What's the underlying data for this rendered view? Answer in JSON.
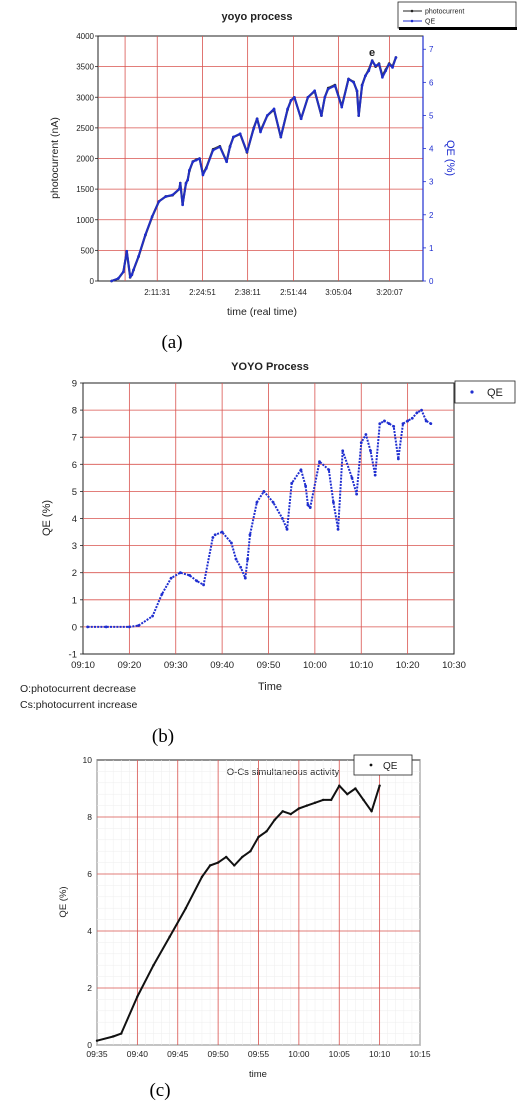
{
  "figure": {
    "captions": [
      "(a)",
      "(b)",
      "(c)"
    ]
  },
  "chart_data": [
    {
      "type": "line",
      "title": "yoyo process",
      "xlabel": "time (real time)",
      "ylabel": "photocurrent (nA)",
      "y2label": "QE (%)",
      "x_tick_labels": [
        "2:11:31",
        "2:24:51",
        "2:38:11",
        "2:51:44",
        "3:05:04",
        "3:20:07"
      ],
      "x_tick_positions_min": [
        131.5,
        144.85,
        158.2,
        171.73,
        185.07,
        200.12
      ],
      "xlim_min": [
        114,
        210
      ],
      "ylim": [
        0,
        4000
      ],
      "y_ticks": [
        0,
        500,
        1000,
        1500,
        2000,
        2500,
        3000,
        3500,
        4000
      ],
      "y2lim": [
        0,
        7.4
      ],
      "y2_ticks": [
        0,
        1,
        2,
        3,
        4,
        5,
        6,
        7
      ],
      "annotation": "e",
      "grid": true,
      "legend_position": "top-right",
      "series": [
        {
          "name": "photocurrent",
          "color": "#222222",
          "x_min": [
            118,
            120,
            121.5,
            122.5,
            123.5,
            124,
            124.5,
            126,
            128,
            130,
            132,
            134,
            136,
            138,
            138.3,
            139,
            140,
            140.5,
            141,
            142,
            143,
            144,
            145,
            146,
            148,
            150,
            152,
            153,
            154,
            156,
            158,
            160,
            161,
            162,
            164,
            166,
            168,
            170,
            171,
            172,
            174,
            176,
            178,
            180,
            181,
            182,
            184,
            186,
            188,
            189.5,
            190.5,
            191,
            192,
            193,
            194,
            195,
            196,
            197,
            198,
            199,
            200,
            201,
            202
          ],
          "values": [
            0,
            40,
            150,
            480,
            60,
            100,
            180,
            400,
            750,
            1050,
            1300,
            1380,
            1400,
            1500,
            1600,
            1250,
            1600,
            1650,
            1800,
            1950,
            1980,
            2000,
            1750,
            1850,
            2150,
            2200,
            1950,
            2200,
            2350,
            2400,
            2100,
            2500,
            2650,
            2450,
            2700,
            2800,
            2350,
            2800,
            2950,
            3000,
            2650,
            3000,
            3100,
            2700,
            3000,
            3150,
            3200,
            2850,
            3300,
            3250,
            3100,
            2700,
            3200,
            3350,
            3450,
            3600,
            3500,
            3550,
            3350,
            3450,
            3550,
            3500,
            3650
          ]
        },
        {
          "name": "QE",
          "color": "#1f2ed0",
          "x_min": [
            118,
            120,
            121.5,
            122.5,
            123.5,
            124,
            124.5,
            126,
            128,
            130,
            132,
            134,
            136,
            138,
            138.3,
            139,
            140,
            140.5,
            141,
            142,
            143,
            144,
            145,
            146,
            148,
            150,
            152,
            153,
            154,
            156,
            158,
            160,
            161,
            162,
            164,
            166,
            168,
            170,
            171,
            172,
            174,
            176,
            178,
            180,
            181,
            182,
            184,
            186,
            188,
            189.5,
            190.5,
            191,
            192,
            193,
            194,
            195,
            196,
            197,
            198,
            199,
            200,
            201,
            202
          ],
          "values": [
            0,
            0.08,
            0.28,
            0.9,
            0.12,
            0.19,
            0.34,
            0.75,
            1.4,
            1.95,
            2.4,
            2.55,
            2.6,
            2.78,
            2.95,
            2.3,
            2.95,
            3.05,
            3.35,
            3.6,
            3.65,
            3.7,
            3.2,
            3.4,
            3.95,
            4.05,
            3.6,
            4.05,
            4.35,
            4.45,
            3.9,
            4.6,
            4.9,
            4.5,
            5.0,
            5.2,
            4.35,
            5.2,
            5.45,
            5.55,
            4.9,
            5.55,
            5.75,
            5.0,
            5.55,
            5.8,
            5.9,
            5.25,
            6.1,
            6.0,
            5.75,
            5.0,
            5.9,
            6.2,
            6.35,
            6.65,
            6.5,
            6.55,
            6.15,
            6.35,
            6.55,
            6.45,
            6.75
          ]
        }
      ]
    },
    {
      "type": "scatter",
      "title": "YOYO Process",
      "xlabel": "Time",
      "ylabel": "QE (%)",
      "x_tick_labels": [
        "09:10",
        "09:20",
        "09:30",
        "09:40",
        "09:50",
        "10:00",
        "10:10",
        "10:20",
        "10:30"
      ],
      "xlim_min": [
        550,
        630
      ],
      "ylim": [
        -1,
        9
      ],
      "y_ticks": [
        -1,
        0,
        1,
        2,
        3,
        4,
        5,
        6,
        7,
        8,
        9
      ],
      "grid": true,
      "legend_position": "top-right",
      "notes": [
        "O:photocurrent decrease",
        "Cs:photocurrent increase"
      ],
      "series": [
        {
          "name": "QE",
          "color": "#1f2ed0",
          "x_min": [
            551,
            555,
            560,
            562,
            565,
            567,
            569,
            571,
            573,
            574.5,
            576,
            578,
            578.5,
            580,
            582,
            583,
            584,
            585,
            585.5,
            586,
            587.5,
            589,
            591,
            593,
            594,
            595,
            597,
            598,
            598.5,
            599,
            601,
            603,
            604,
            605,
            606,
            608,
            609,
            610,
            611,
            612,
            613,
            614,
            615,
            616,
            617,
            618,
            619,
            620,
            621,
            622,
            623,
            624,
            625
          ],
          "values": [
            0,
            0,
            0,
            0.05,
            0.4,
            1.2,
            1.8,
            2.0,
            1.9,
            1.7,
            1.55,
            3.3,
            3.4,
            3.5,
            3.1,
            2.5,
            2.2,
            1.8,
            2.5,
            3.4,
            4.6,
            5.0,
            4.6,
            4.0,
            3.6,
            5.3,
            5.8,
            5.2,
            4.5,
            4.4,
            6.1,
            5.8,
            4.6,
            3.6,
            6.5,
            5.5,
            4.9,
            6.8,
            7.1,
            6.5,
            5.6,
            7.5,
            7.6,
            7.5,
            7.4,
            6.2,
            7.5,
            7.6,
            7.7,
            7.9,
            8.0,
            7.6,
            7.5
          ]
        }
      ]
    },
    {
      "type": "scatter",
      "title": "O-Cs simultaneous activity",
      "xlabel": "time",
      "ylabel": "QE (%)",
      "x_tick_labels": [
        "09:35",
        "09:40",
        "09:45",
        "09:50",
        "09:55",
        "10:00",
        "10:05",
        "10:10",
        "10:15"
      ],
      "xlim_min": [
        575,
        615
      ],
      "ylim": [
        0,
        10
      ],
      "y_ticks": [
        0,
        2,
        4,
        6,
        8,
        10
      ],
      "grid": true,
      "legend_position": "top-right",
      "series": [
        {
          "name": "QE",
          "color": "#111111",
          "x_min": [
            575,
            577,
            578,
            580,
            582,
            584,
            586,
            588,
            589,
            590,
            591,
            592,
            593,
            594,
            595,
            596,
            597,
            598,
            599,
            600,
            601,
            602,
            603,
            604,
            605,
            606,
            607,
            608,
            609,
            610
          ],
          "values": [
            0.15,
            0.3,
            0.4,
            1.7,
            2.8,
            3.8,
            4.8,
            5.9,
            6.3,
            6.4,
            6.6,
            6.3,
            6.6,
            6.8,
            7.3,
            7.5,
            7.9,
            8.2,
            8.1,
            8.3,
            8.4,
            8.5,
            8.6,
            8.6,
            9.1,
            8.8,
            9.0,
            8.6,
            8.2,
            9.1
          ]
        }
      ]
    }
  ]
}
